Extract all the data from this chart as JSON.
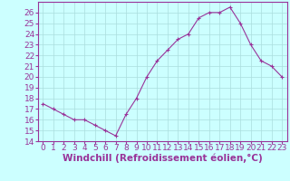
{
  "x": [
    0,
    1,
    2,
    3,
    4,
    5,
    6,
    7,
    8,
    9,
    10,
    11,
    12,
    13,
    14,
    15,
    16,
    17,
    18,
    19,
    20,
    21,
    22,
    23
  ],
  "y": [
    17.5,
    17.0,
    16.5,
    16.0,
    16.0,
    15.5,
    15.0,
    14.5,
    16.5,
    18.0,
    20.0,
    21.5,
    22.5,
    23.5,
    24.0,
    25.5,
    26.0,
    26.0,
    26.5,
    25.0,
    23.0,
    21.5,
    21.0,
    20.0
  ],
  "line_color": "#993399",
  "marker": "+",
  "bg_color": "#ccffff",
  "grid_color": "#aadddd",
  "xlabel": "Windchill (Refroidissement éolien,°C)",
  "xlabel_color": "#993399",
  "tick_color": "#993399",
  "ylim": [
    14,
    27
  ],
  "xlim": [
    -0.5,
    23.5
  ],
  "yticks": [
    14,
    15,
    16,
    17,
    18,
    19,
    20,
    21,
    22,
    23,
    24,
    25,
    26
  ],
  "xticks": [
    0,
    1,
    2,
    3,
    4,
    5,
    6,
    7,
    8,
    9,
    10,
    11,
    12,
    13,
    14,
    15,
    16,
    17,
    18,
    19,
    20,
    21,
    22,
    23
  ],
  "border_color": "#993399",
  "font_size": 6.5,
  "xlabel_fontsize": 7.5
}
